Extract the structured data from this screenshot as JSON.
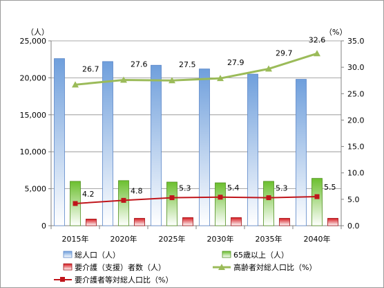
{
  "chart_data": {
    "type": "bar",
    "categories": [
      "2015年",
      "2020年",
      "2025年",
      "2030年",
      "2035年",
      "2040年"
    ],
    "y_left": {
      "unit_label": "（人）",
      "ylim": [
        0,
        25000
      ],
      "ticks": [
        "0",
        "5,000",
        "10,000",
        "15,000",
        "20,000",
        "25,000"
      ]
    },
    "y_right": {
      "unit_label": "（%）",
      "ylim": [
        0,
        35
      ],
      "ticks": [
        "0.0",
        "5.0",
        "10.0",
        "15.0",
        "20.0",
        "25.0",
        "30.0",
        "35.0"
      ]
    },
    "series": [
      {
        "name": "総人口（人）",
        "kind": "bar",
        "axis": "left",
        "values": [
          22600,
          22200,
          21700,
          21200,
          20500,
          19800
        ]
      },
      {
        "name": "65歳以上（人）",
        "kind": "bar",
        "axis": "left",
        "values": [
          6000,
          6100,
          5900,
          5800,
          6000,
          6400
        ]
      },
      {
        "name": "要介護（支援）者数（人）",
        "kind": "bar",
        "axis": "left",
        "values": [
          900,
          1000,
          1100,
          1100,
          1000,
          1000
        ]
      },
      {
        "name": "高齢者対総人口比（%）",
        "kind": "line",
        "axis": "right",
        "values": [
          26.7,
          27.6,
          27.5,
          27.9,
          29.7,
          32.6
        ],
        "labels": [
          "26.7",
          "27.6",
          "27.5",
          "27.9",
          "29.7",
          "32.6"
        ]
      },
      {
        "name": "要介護者等対総人口比（%）",
        "kind": "line",
        "axis": "right",
        "values": [
          4.2,
          4.8,
          5.3,
          5.4,
          5.3,
          5.5
        ],
        "labels": [
          "4.2",
          "4.8",
          "5.3",
          "5.4",
          "5.3",
          "5.5"
        ]
      }
    ],
    "colors": {
      "total_pop": "#8fb4e3",
      "elderly": "#8cc63f",
      "care": "#d9262b",
      "elderly_ratio_line": "#9bbb59",
      "care_ratio_line": "#c0151b"
    },
    "grid": true,
    "legend_position": "bottom"
  }
}
